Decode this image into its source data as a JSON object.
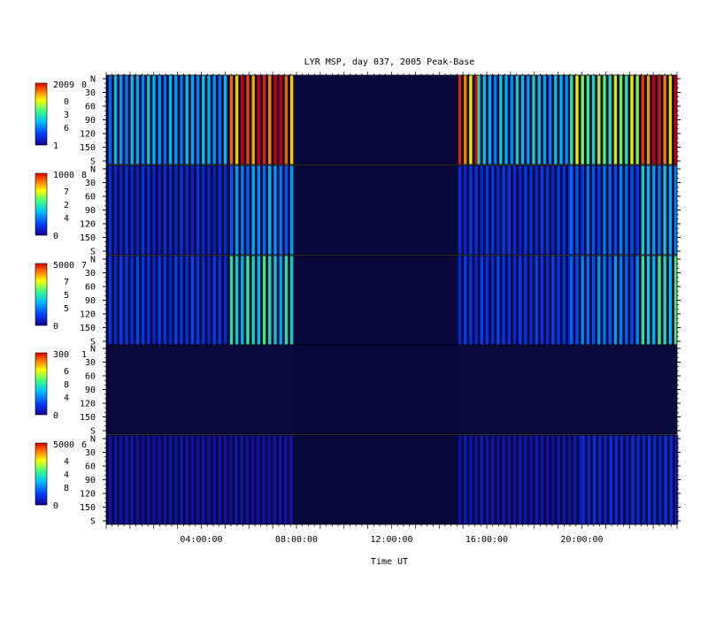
{
  "chart_data": {
    "type": "heatmap",
    "title": "LYR MSP, day 037, 2005 Peak-Base",
    "xlabel": "Time UT",
    "x_ticks": [
      "04:00:00",
      "08:00:00",
      "12:00:00",
      "16:00:00",
      "20:00:00"
    ],
    "x_range_hours": [
      0,
      24
    ],
    "y_range_deg": [
      0,
      180
    ],
    "y_ticks": [
      "N",
      "30",
      "60",
      "90",
      "120",
      "150",
      "S"
    ],
    "data_gap_hours": [
      7.9,
      14.8
    ],
    "panels": [
      {
        "colorbar_max": "2009",
        "colorbar_min": "1",
        "colorbar_mid": [
          "0",
          "3",
          "6"
        ],
        "top_tick": "0",
        "activity_blocks": [
          {
            "start": 0.1,
            "end": 5.2,
            "level": 0.32
          },
          {
            "start": 5.2,
            "end": 7.9,
            "level": 0.95
          },
          {
            "start": 14.8,
            "end": 15.6,
            "level": 0.9
          },
          {
            "start": 15.6,
            "end": 19.5,
            "level": 0.35
          },
          {
            "start": 19.5,
            "end": 22.5,
            "level": 0.55
          },
          {
            "start": 22.5,
            "end": 24.0,
            "level": 0.92
          }
        ]
      },
      {
        "colorbar_max": "1000",
        "colorbar_min": "0",
        "colorbar_mid": [
          "7",
          "2",
          "4"
        ],
        "top_tick": "8",
        "activity_blocks": [
          {
            "start": 0.1,
            "end": 5.2,
            "level": 0.12
          },
          {
            "start": 5.2,
            "end": 7.9,
            "level": 0.28
          },
          {
            "start": 14.8,
            "end": 19.5,
            "level": 0.14
          },
          {
            "start": 19.5,
            "end": 22.5,
            "level": 0.22
          },
          {
            "start": 22.5,
            "end": 24.0,
            "level": 0.34
          }
        ]
      },
      {
        "colorbar_max": "5000",
        "colorbar_min": "0",
        "colorbar_mid": [
          "7",
          "5",
          "5"
        ],
        "top_tick": "7",
        "activity_blocks": [
          {
            "start": 0.1,
            "end": 5.2,
            "level": 0.15
          },
          {
            "start": 5.2,
            "end": 7.9,
            "level": 0.42
          },
          {
            "start": 14.8,
            "end": 19.5,
            "level": 0.15
          },
          {
            "start": 19.5,
            "end": 22.5,
            "level": 0.25
          },
          {
            "start": 22.5,
            "end": 24.0,
            "level": 0.45
          }
        ]
      },
      {
        "colorbar_max": "300",
        "colorbar_min": "0",
        "colorbar_mid": [
          "6",
          "8",
          "4"
        ],
        "top_tick": "1",
        "activity_blocks": []
      },
      {
        "colorbar_max": "5000",
        "colorbar_min": "0",
        "colorbar_mid": [
          "4",
          "4",
          "8"
        ],
        "top_tick": "6",
        "activity_blocks": [
          {
            "start": 0.1,
            "end": 7.9,
            "level": 0.05
          },
          {
            "start": 14.8,
            "end": 20.0,
            "level": 0.06
          },
          {
            "start": 20.0,
            "end": 24.0,
            "level": 0.12
          }
        ]
      }
    ]
  },
  "colors": {
    "background": "#ffffff",
    "panel_fill": "#0a0a3c",
    "gap_fill": "#08083a",
    "colormap": [
      "#1a0090",
      "#0040ff",
      "#00c0ff",
      "#40ff80",
      "#ffff00",
      "#ff8000",
      "#e00000"
    ]
  }
}
